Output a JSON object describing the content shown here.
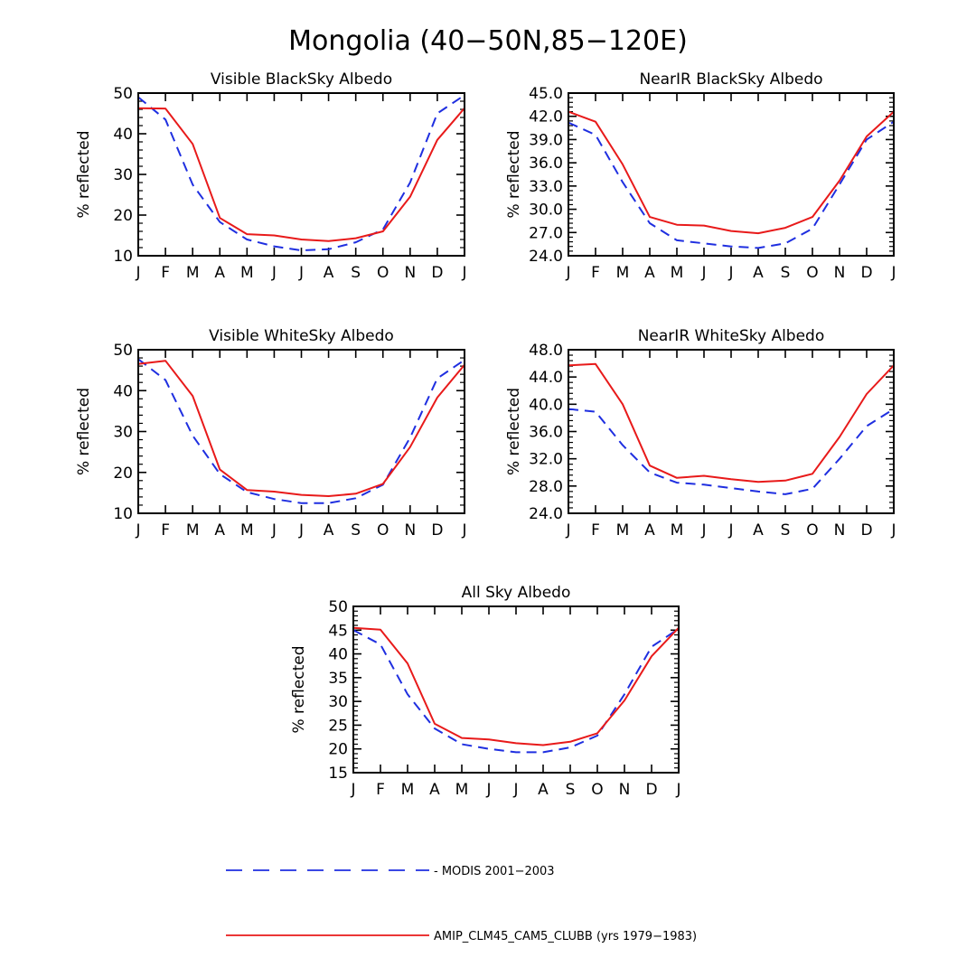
{
  "title": "Mongolia (40−50N,85−120E)",
  "colors": {
    "modis": "#1f2fe0",
    "model": "#e81a1a"
  },
  "legend": [
    {
      "key": "modis",
      "label": "- MODIS 2001−2003",
      "style": "dashed"
    },
    {
      "key": "model",
      "label": "AMIP_CLM45_CAM5_CLUBB (yrs 1979−1983)",
      "style": "solid"
    }
  ],
  "chart_data": [
    {
      "type": "line",
      "title": "Visible BlackSky Albedo",
      "xlabel": "",
      "ylabel": "% reflected",
      "categories": [
        "J",
        "F",
        "M",
        "A",
        "M",
        "J",
        "J",
        "A",
        "S",
        "O",
        "N",
        "D",
        "J"
      ],
      "ylim": [
        10,
        50
      ],
      "yticks": [
        10,
        20,
        30,
        40,
        50
      ],
      "ytick_labels": [
        "10",
        "20",
        "30",
        "40",
        "50"
      ],
      "series": [
        {
          "name": "MODIS 2001−2003",
          "values": [
            49,
            43.5,
            27.5,
            18.3,
            14.0,
            12.3,
            11.3,
            11.6,
            13.3,
            16.5,
            28.0,
            45.0,
            49.5
          ]
        },
        {
          "name": "AMIP_CLM45_CAM5_CLUBB (yrs 1979−1983)",
          "values": [
            46.3,
            46.2,
            37.5,
            19.3,
            15.3,
            15.0,
            14.0,
            13.6,
            14.3,
            16.0,
            24.5,
            38.5,
            46.3
          ]
        }
      ]
    },
    {
      "type": "line",
      "title": "NearIR BlackSky Albedo",
      "xlabel": "",
      "ylabel": "% reflected",
      "categories": [
        "J",
        "F",
        "M",
        "A",
        "M",
        "J",
        "J",
        "A",
        "S",
        "O",
        "N",
        "D",
        "J"
      ],
      "ylim": [
        24.0,
        45.0
      ],
      "yticks": [
        24,
        27,
        30,
        33,
        36,
        39,
        42,
        45
      ],
      "ytick_labels": [
        "24.0",
        "27.0",
        "30.0",
        "33.0",
        "36.0",
        "39.0",
        "42.0",
        "45.0"
      ],
      "series": [
        {
          "name": "MODIS 2001−2003",
          "values": [
            41.2,
            39.6,
            33.5,
            28.2,
            26.0,
            25.6,
            25.2,
            25.0,
            25.6,
            27.5,
            33.2,
            39.0,
            41.3
          ]
        },
        {
          "name": "AMIP_CLM45_CAM5_CLUBB (yrs 1979−1983)",
          "values": [
            42.6,
            41.3,
            35.8,
            29.0,
            28.0,
            27.9,
            27.2,
            26.9,
            27.6,
            29.0,
            33.7,
            39.4,
            42.6
          ]
        }
      ]
    },
    {
      "type": "line",
      "title": "Visible WhiteSky Albedo",
      "xlabel": "",
      "ylabel": "% reflected",
      "categories": [
        "J",
        "F",
        "M",
        "A",
        "M",
        "J",
        "J",
        "A",
        "S",
        "O",
        "N",
        "D",
        "J"
      ],
      "ylim": [
        10,
        50
      ],
      "yticks": [
        10,
        20,
        30,
        40,
        50
      ],
      "ytick_labels": [
        "10",
        "20",
        "30",
        "40",
        "50"
      ],
      "series": [
        {
          "name": "MODIS 2001−2003",
          "values": [
            47.7,
            42.6,
            29.0,
            19.6,
            15.2,
            13.5,
            12.5,
            12.5,
            13.7,
            17.0,
            28.5,
            43.0,
            47.5
          ]
        },
        {
          "name": "AMIP_CLM45_CAM5_CLUBB (yrs 1979−1983)",
          "values": [
            46.5,
            47.3,
            38.7,
            20.7,
            15.7,
            15.3,
            14.5,
            14.2,
            14.8,
            17.2,
            26.2,
            38.3,
            46.3
          ]
        }
      ]
    },
    {
      "type": "line",
      "title": "NearIR WhiteSky Albedo",
      "xlabel": "",
      "ylabel": "% reflected",
      "categories": [
        "J",
        "F",
        "M",
        "A",
        "M",
        "J",
        "J",
        "A",
        "S",
        "O",
        "N",
        "D",
        "J"
      ],
      "ylim": [
        24.0,
        48.0
      ],
      "yticks": [
        24,
        28,
        32,
        36,
        40,
        44,
        48
      ],
      "ytick_labels": [
        "24.0",
        "28.0",
        "32.0",
        "36.0",
        "40.0",
        "44.0",
        "48.0"
      ],
      "series": [
        {
          "name": "MODIS 2001−2003",
          "values": [
            39.3,
            38.9,
            34.0,
            30.0,
            28.5,
            28.2,
            27.7,
            27.2,
            26.8,
            27.6,
            32.0,
            36.8,
            39.3
          ]
        },
        {
          "name": "AMIP_CLM45_CAM5_CLUBB (yrs 1979−1983)",
          "values": [
            45.7,
            45.9,
            40.0,
            31.0,
            29.2,
            29.5,
            29.0,
            28.6,
            28.8,
            29.8,
            35.2,
            41.5,
            45.7
          ]
        }
      ]
    },
    {
      "type": "line",
      "title": "All Sky Albedo",
      "xlabel": "",
      "ylabel": "% reflected",
      "categories": [
        "J",
        "F",
        "M",
        "A",
        "M",
        "J",
        "J",
        "A",
        "S",
        "O",
        "N",
        "D",
        "J"
      ],
      "ylim": [
        15,
        50
      ],
      "yticks": [
        15,
        20,
        25,
        30,
        35,
        40,
        45,
        50
      ],
      "ytick_labels": [
        "15",
        "20",
        "25",
        "30",
        "35",
        "40",
        "45",
        "50"
      ],
      "series": [
        {
          "name": "MODIS 2001−2003",
          "values": [
            45.0,
            42.0,
            31.5,
            24.3,
            21.0,
            20.0,
            19.3,
            19.3,
            20.3,
            22.8,
            31.5,
            41.5,
            45.3
          ]
        },
        {
          "name": "AMIP_CLM45_CAM5_CLUBB (yrs 1979−1983)",
          "values": [
            45.5,
            45.1,
            38.0,
            25.3,
            22.3,
            22.0,
            21.2,
            20.8,
            21.5,
            23.3,
            30.2,
            39.5,
            45.5
          ]
        }
      ]
    }
  ]
}
